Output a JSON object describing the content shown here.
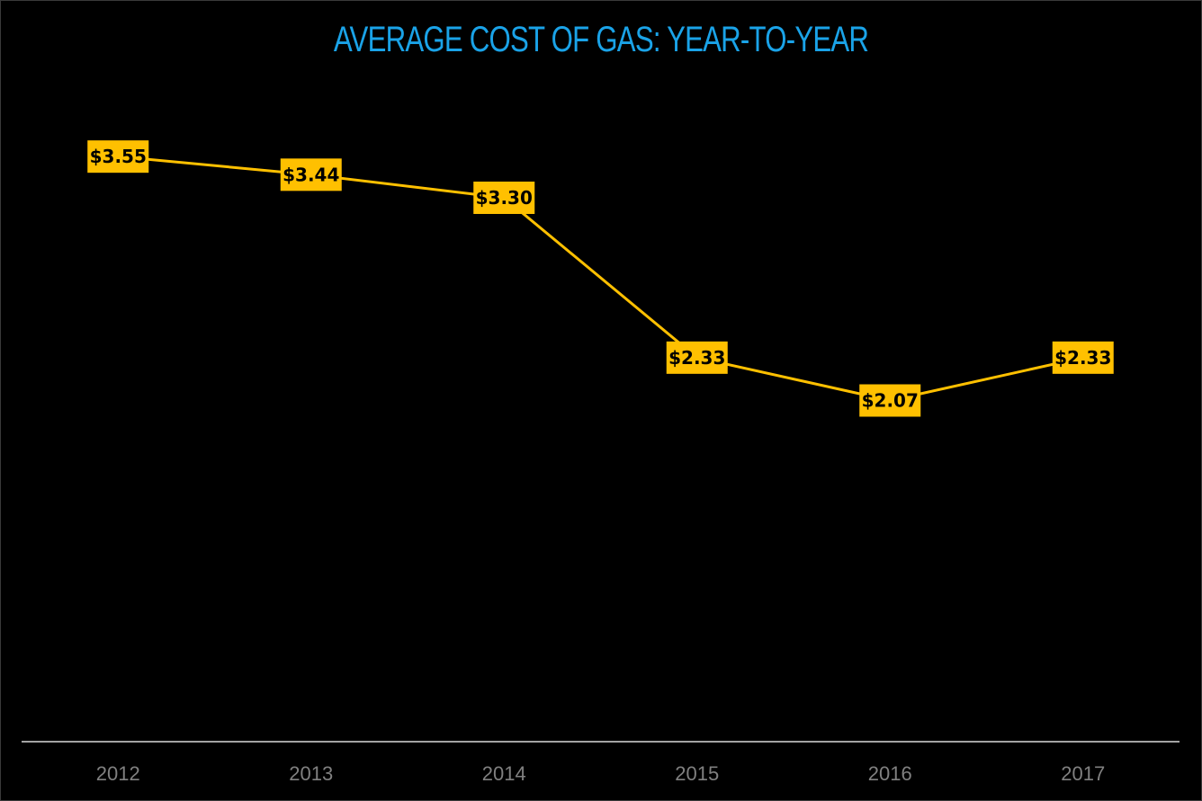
{
  "chart_data": {
    "type": "line",
    "title": "AVERAGE COST OF GAS: YEAR-TO-YEAR",
    "categories": [
      "2012",
      "2013",
      "2014",
      "2015",
      "2016",
      "2017"
    ],
    "series": [
      {
        "values": [
          3.55,
          3.44,
          3.3,
          2.33,
          2.07,
          2.33
        ],
        "data_labels": [
          "$3.55",
          "$3.44",
          "$3.30",
          "$2.33",
          "$2.07",
          "$2.33"
        ]
      }
    ],
    "xlabel": "",
    "ylabel": "",
    "ylim": [
      0,
      4.5
    ],
    "grid": false,
    "legend": "none",
    "y_axis_visible": false
  },
  "colors": {
    "background": "#000000",
    "title": "#1aa3e8",
    "line": "#ffc000",
    "label_box": "#ffc000",
    "label_text": "#000000",
    "axis_line": "#d9d9d9",
    "tick_text": "#808080"
  }
}
